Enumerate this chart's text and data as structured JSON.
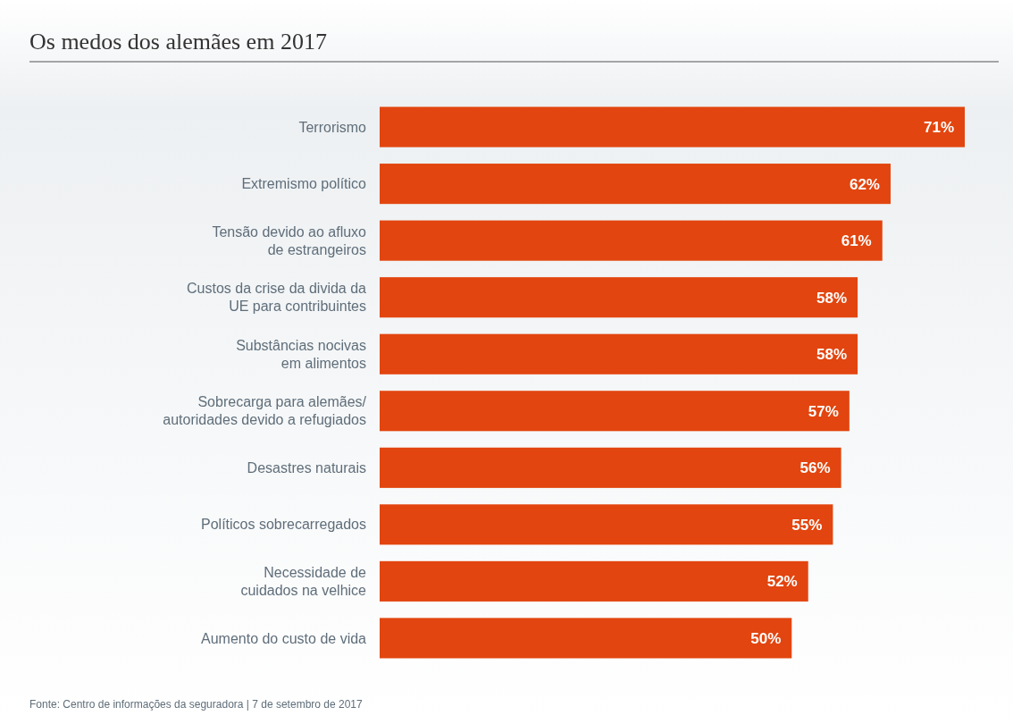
{
  "chart_data": {
    "type": "bar",
    "orientation": "horizontal",
    "title": "Os medos dos alemães em 2017",
    "categories": [
      "Terrorismo",
      "Extremismo político",
      "Tensão devido ao afluxo\nde estrangeiros",
      "Custos da crise da divida da\nUE para contribuintes",
      "Substâncias nocivas\nem alimentos",
      "Sobrecarga para alemães/\nautoridades devido a refugiados",
      "Desastres naturais",
      "Políticos sobrecarregados",
      "Necessidade de\ncuidados na velhice",
      "Aumento do custo de vida"
    ],
    "values": [
      71,
      62,
      61,
      58,
      58,
      57,
      56,
      55,
      52,
      50
    ],
    "value_labels": [
      "71%",
      "62%",
      "61%",
      "58%",
      "58%",
      "57%",
      "56%",
      "55%",
      "52%",
      "50%"
    ],
    "color": "#e2450f",
    "annotations": [
      "Fonte: Centro de informações da seguradora | 7 de setembro de 2017"
    ]
  }
}
